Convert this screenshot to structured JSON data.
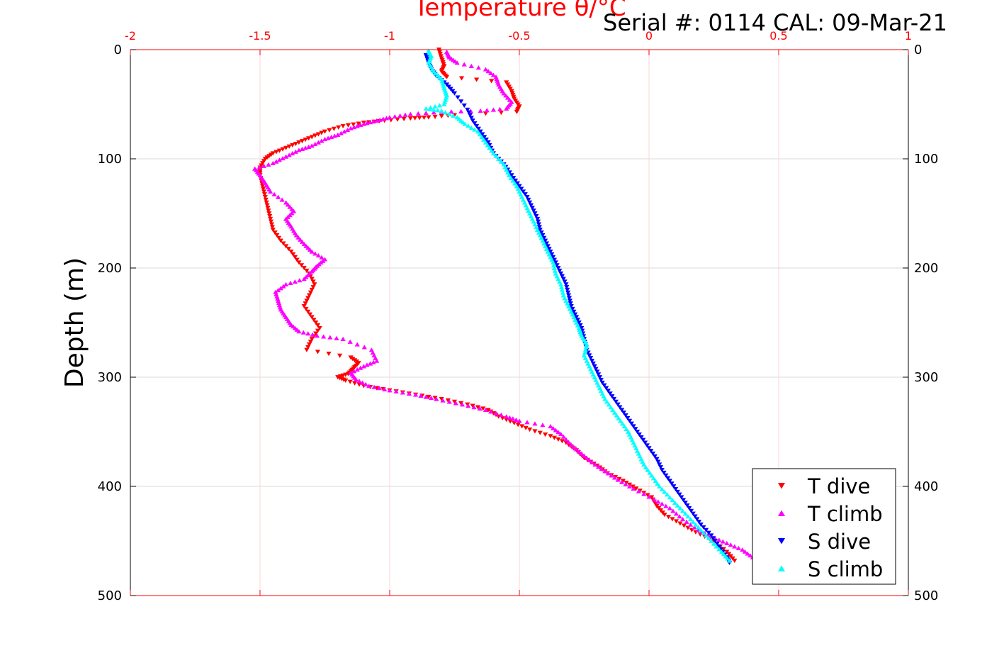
{
  "chart_data": {
    "type": "scatter",
    "title": "Serial #: 0114  CAL: 09-Mar-21",
    "xlabel": "Temperature θ/°C",
    "ylabel": "Depth (m)",
    "xlim": [
      -2,
      1
    ],
    "ylim": [
      0,
      500
    ],
    "y_reversed": true,
    "x_axis_position": "top",
    "x_ticks": [
      "-2",
      "-1.5",
      "-1",
      "-0.5",
      "0",
      "0.5",
      "1"
    ],
    "y_ticks": [
      "0",
      "100",
      "200",
      "300",
      "400",
      "500"
    ],
    "grid": true,
    "legend_position": "bottom-right",
    "colors": {
      "axis_x": "#ff0000",
      "axis_y": "#000000",
      "grid": "#d9d9d9"
    },
    "series": [
      {
        "name": "T dive",
        "marker": "triangle-down",
        "color": "#ff0000",
        "points": [
          [
            -0.81,
            0
          ],
          [
            -0.8,
            8
          ],
          [
            -0.79,
            15
          ],
          [
            -0.8,
            20
          ],
          [
            -0.78,
            25
          ],
          [
            -0.55,
            30
          ],
          [
            -0.53,
            38
          ],
          [
            -0.52,
            45
          ],
          [
            -0.5,
            52
          ],
          [
            -0.51,
            57
          ],
          [
            -0.75,
            60
          ],
          [
            -0.85,
            62
          ],
          [
            -0.92,
            63
          ],
          [
            -1.02,
            65
          ],
          [
            -1.1,
            67
          ],
          [
            -1.18,
            70
          ],
          [
            -1.25,
            75
          ],
          [
            -1.3,
            80
          ],
          [
            -1.35,
            85
          ],
          [
            -1.4,
            90
          ],
          [
            -1.45,
            95
          ],
          [
            -1.48,
            100
          ],
          [
            -1.5,
            108
          ],
          [
            -1.5,
            115
          ],
          [
            -1.49,
            125
          ],
          [
            -1.48,
            135
          ],
          [
            -1.47,
            145
          ],
          [
            -1.46,
            155
          ],
          [
            -1.45,
            165
          ],
          [
            -1.42,
            175
          ],
          [
            -1.38,
            185
          ],
          [
            -1.35,
            195
          ],
          [
            -1.31,
            205
          ],
          [
            -1.29,
            215
          ],
          [
            -1.31,
            225
          ],
          [
            -1.33,
            235
          ],
          [
            -1.3,
            245
          ],
          [
            -1.27,
            255
          ],
          [
            -1.3,
            265
          ],
          [
            -1.32,
            275
          ],
          [
            -1.15,
            282
          ],
          [
            -1.12,
            287
          ],
          [
            -1.14,
            292
          ],
          [
            -1.16,
            297
          ],
          [
            -1.2,
            300
          ],
          [
            -1.17,
            303
          ],
          [
            -1.1,
            308
          ],
          [
            -1.0,
            312
          ],
          [
            -0.9,
            316
          ],
          [
            -0.8,
            320
          ],
          [
            -0.7,
            325
          ],
          [
            -0.62,
            330
          ],
          [
            -0.58,
            336
          ],
          [
            -0.52,
            342
          ],
          [
            -0.46,
            348
          ],
          [
            -0.38,
            354
          ],
          [
            -0.32,
            360
          ],
          [
            -0.28,
            367
          ],
          [
            -0.25,
            374
          ],
          [
            -0.2,
            381
          ],
          [
            -0.16,
            388
          ],
          [
            -0.1,
            395
          ],
          [
            -0.05,
            402
          ],
          [
            0.01,
            410
          ],
          [
            0.03,
            418
          ],
          [
            0.06,
            426
          ],
          [
            0.12,
            434
          ],
          [
            0.18,
            442
          ],
          [
            0.25,
            450
          ],
          [
            0.3,
            460
          ],
          [
            0.33,
            468
          ]
        ]
      },
      {
        "name": "T climb",
        "marker": "triangle-up",
        "color": "#ff00ff",
        "points": [
          [
            0.4,
            465
          ],
          [
            0.36,
            458
          ],
          [
            0.3,
            452
          ],
          [
            0.24,
            446
          ],
          [
            0.19,
            440
          ],
          [
            0.13,
            430
          ],
          [
            0.08,
            420
          ],
          [
            0.02,
            412
          ],
          [
            -0.06,
            402
          ],
          [
            -0.12,
            394
          ],
          [
            -0.17,
            386
          ],
          [
            -0.22,
            378
          ],
          [
            -0.26,
            370
          ],
          [
            -0.3,
            362
          ],
          [
            -0.34,
            352
          ],
          [
            -0.38,
            345
          ],
          [
            -0.5,
            340
          ],
          [
            -0.55,
            336
          ],
          [
            -0.63,
            330
          ],
          [
            -0.72,
            325
          ],
          [
            -0.82,
            320
          ],
          [
            -0.9,
            316
          ],
          [
            -1.0,
            312
          ],
          [
            -1.08,
            308
          ],
          [
            -1.13,
            302
          ],
          [
            -1.15,
            296
          ],
          [
            -1.1,
            290
          ],
          [
            -1.05,
            285
          ],
          [
            -1.07,
            275
          ],
          [
            -1.18,
            265
          ],
          [
            -1.28,
            262
          ],
          [
            -1.35,
            258
          ],
          [
            -1.38,
            252
          ],
          [
            -1.4,
            245
          ],
          [
            -1.42,
            238
          ],
          [
            -1.43,
            230
          ],
          [
            -1.44,
            222
          ],
          [
            -1.4,
            215
          ],
          [
            -1.33,
            210
          ],
          [
            -1.3,
            203
          ],
          [
            -1.28,
            198
          ],
          [
            -1.25,
            192
          ],
          [
            -1.3,
            185
          ],
          [
            -1.33,
            178
          ],
          [
            -1.36,
            170
          ],
          [
            -1.38,
            162
          ],
          [
            -1.4,
            155
          ],
          [
            -1.37,
            148
          ],
          [
            -1.4,
            140
          ],
          [
            -1.46,
            130
          ],
          [
            -1.48,
            122
          ],
          [
            -1.5,
            115
          ],
          [
            -1.52,
            109
          ],
          [
            -1.45,
            104
          ],
          [
            -1.4,
            98
          ],
          [
            -1.35,
            92
          ],
          [
            -1.3,
            88
          ],
          [
            -1.25,
            82
          ],
          [
            -1.2,
            78
          ],
          [
            -1.15,
            72
          ],
          [
            -1.1,
            68
          ],
          [
            -1.05,
            65
          ],
          [
            -1.0,
            62
          ],
          [
            -0.92,
            59
          ],
          [
            -0.8,
            57
          ],
          [
            -0.65,
            56
          ],
          [
            -0.55,
            54
          ],
          [
            -0.53,
            48
          ],
          [
            -0.56,
            40
          ],
          [
            -0.58,
            32
          ],
          [
            -0.59,
            25
          ],
          [
            -0.63,
            18
          ],
          [
            -0.74,
            12
          ],
          [
            -0.77,
            7
          ],
          [
            -0.78,
            2
          ]
        ]
      },
      {
        "name": "S dive",
        "marker": "triangle-down",
        "color": "#0000ff",
        "points": [
          [
            -0.86,
            5
          ],
          [
            -0.85,
            12
          ],
          [
            -0.84,
            18
          ],
          [
            -0.82,
            24
          ],
          [
            -0.78,
            32
          ],
          [
            -0.75,
            40
          ],
          [
            -0.7,
            55
          ],
          [
            -0.68,
            65
          ],
          [
            -0.65,
            75
          ],
          [
            -0.62,
            85
          ],
          [
            -0.6,
            95
          ],
          [
            -0.56,
            105
          ],
          [
            -0.53,
            115
          ],
          [
            -0.5,
            125
          ],
          [
            -0.47,
            135
          ],
          [
            -0.45,
            145
          ],
          [
            -0.43,
            155
          ],
          [
            -0.42,
            165
          ],
          [
            -0.4,
            175
          ],
          [
            -0.38,
            185
          ],
          [
            -0.36,
            195
          ],
          [
            -0.34,
            205
          ],
          [
            -0.32,
            215
          ],
          [
            -0.31,
            225
          ],
          [
            -0.3,
            235
          ],
          [
            -0.28,
            245
          ],
          [
            -0.26,
            255
          ],
          [
            -0.25,
            265
          ],
          [
            -0.24,
            275
          ],
          [
            -0.22,
            285
          ],
          [
            -0.2,
            295
          ],
          [
            -0.18,
            305
          ],
          [
            -0.15,
            315
          ],
          [
            -0.12,
            325
          ],
          [
            -0.09,
            335
          ],
          [
            -0.06,
            345
          ],
          [
            -0.03,
            355
          ],
          [
            0.0,
            365
          ],
          [
            0.03,
            375
          ],
          [
            0.05,
            385
          ],
          [
            0.08,
            395
          ],
          [
            0.11,
            405
          ],
          [
            0.14,
            415
          ],
          [
            0.17,
            425
          ],
          [
            0.2,
            435
          ],
          [
            0.24,
            445
          ],
          [
            0.27,
            455
          ],
          [
            0.3,
            465
          ],
          [
            0.31,
            470
          ]
        ]
      },
      {
        "name": "S climb",
        "marker": "triangle-up",
        "color": "#00ffff",
        "points": [
          [
            0.31,
            468
          ],
          [
            0.28,
            460
          ],
          [
            0.24,
            450
          ],
          [
            0.2,
            440
          ],
          [
            0.16,
            430
          ],
          [
            0.12,
            420
          ],
          [
            0.08,
            410
          ],
          [
            0.04,
            400
          ],
          [
            0.01,
            390
          ],
          [
            -0.02,
            380
          ],
          [
            -0.04,
            370
          ],
          [
            -0.06,
            360
          ],
          [
            -0.08,
            350
          ],
          [
            -0.11,
            340
          ],
          [
            -0.14,
            330
          ],
          [
            -0.17,
            320
          ],
          [
            -0.19,
            310
          ],
          [
            -0.21,
            300
          ],
          [
            -0.23,
            290
          ],
          [
            -0.25,
            280
          ],
          [
            -0.24,
            270
          ],
          [
            -0.26,
            262
          ],
          [
            -0.27,
            255
          ],
          [
            -0.29,
            245
          ],
          [
            -0.31,
            235
          ],
          [
            -0.33,
            225
          ],
          [
            -0.34,
            215
          ],
          [
            -0.36,
            205
          ],
          [
            -0.37,
            195
          ],
          [
            -0.39,
            185
          ],
          [
            -0.41,
            175
          ],
          [
            -0.43,
            165
          ],
          [
            -0.45,
            155
          ],
          [
            -0.47,
            145
          ],
          [
            -0.49,
            135
          ],
          [
            -0.51,
            125
          ],
          [
            -0.54,
            115
          ],
          [
            -0.56,
            105
          ],
          [
            -0.6,
            95
          ],
          [
            -0.63,
            85
          ],
          [
            -0.66,
            75
          ],
          [
            -0.71,
            68
          ],
          [
            -0.74,
            62
          ],
          [
            -0.8,
            56
          ],
          [
            -0.86,
            54
          ],
          [
            -0.79,
            50
          ],
          [
            -0.78,
            42
          ],
          [
            -0.79,
            35
          ],
          [
            -0.8,
            27
          ],
          [
            -0.83,
            20
          ],
          [
            -0.85,
            12
          ],
          [
            -0.84,
            6
          ],
          [
            -0.85,
            1
          ]
        ]
      }
    ]
  }
}
